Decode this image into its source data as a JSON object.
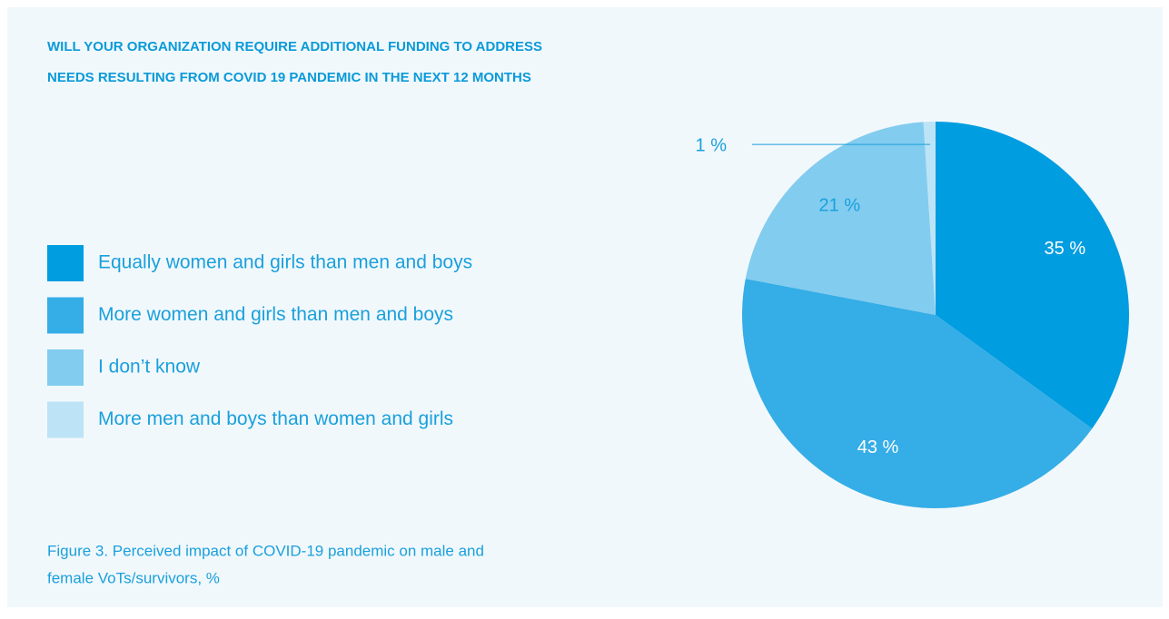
{
  "chart_data": {
    "type": "pie",
    "title": [
      "WILL YOUR ORGANIZATION REQUIRE ADDITIONAL FUNDING TO ADDRESS",
      "NEEDS RESULTING FROM COVID 19 PANDEMIC IN THE NEXT 12 MONTHS"
    ],
    "categories": [
      "Equally women and girls than men and boys",
      "More women and girls than men and boys",
      "I don’t know",
      "More men and boys than women and girls"
    ],
    "values": [
      35,
      43,
      21,
      1
    ],
    "value_labels": [
      "35 %",
      "43 %",
      "21 %",
      "1 %"
    ],
    "colors": [
      "#009de0",
      "#35ade6",
      "#82ccef",
      "#bde3f6"
    ],
    "caption": [
      "Figure 3. Perceived impact of COVID-19 pandemic on male and",
      "female VoTs/survivors, %"
    ]
  }
}
